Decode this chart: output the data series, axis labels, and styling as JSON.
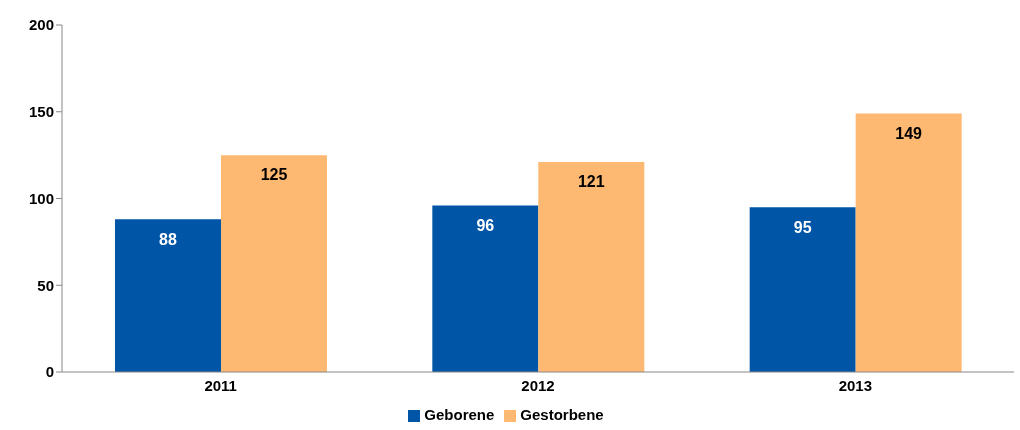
{
  "chart_data": {
    "type": "bar",
    "categories": [
      "2011",
      "2012",
      "2013"
    ],
    "series": [
      {
        "name": "Geborene",
        "color": "#0055a6",
        "values": [
          88,
          96,
          95
        ]
      },
      {
        "name": "Gestorbene",
        "color": "#fdb871",
        "values": [
          125,
          121,
          149
        ]
      }
    ],
    "ylim": [
      0,
      200
    ],
    "yticks": [
      0,
      50,
      100,
      150,
      200
    ],
    "grid": false,
    "legend": "bottom",
    "data_labels": true
  }
}
